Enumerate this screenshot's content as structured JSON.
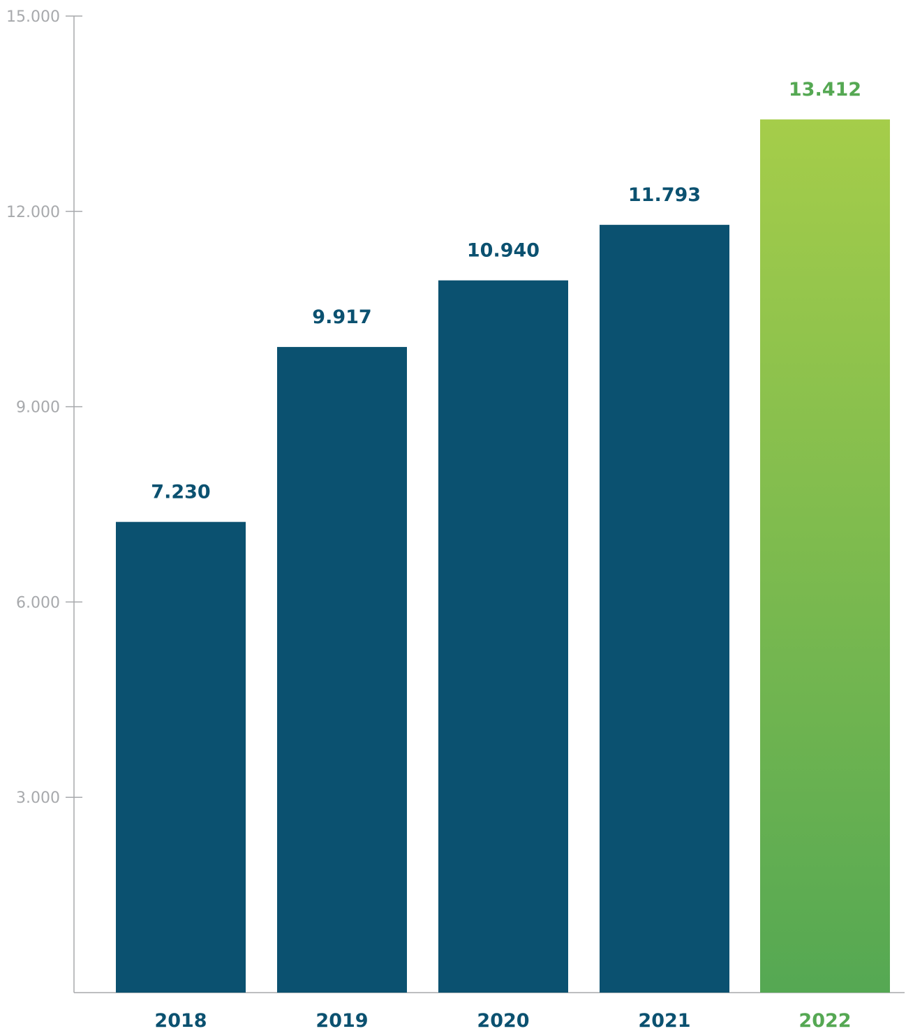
{
  "chart_data": {
    "type": "bar",
    "title": "",
    "xlabel": "",
    "ylabel": "",
    "categories": [
      "2018",
      "2019",
      "2020",
      "2021",
      "2022"
    ],
    "values": [
      7230,
      9917,
      10940,
      11793,
      13412
    ],
    "value_labels": [
      "7.230",
      "9.917",
      "10.940",
      "11.793",
      "13.412"
    ],
    "ylim": [
      0,
      15000
    ],
    "yticks": [
      3000,
      6000,
      9000,
      12000,
      15000
    ],
    "ytick_labels": [
      "3.000",
      "6.000",
      "9.000",
      "12.000",
      "15.000"
    ],
    "grid": false,
    "legend": "none",
    "highlight_index": 4
  },
  "colors": {
    "bar": "#0b5170",
    "highlight_top": "#a5cd4a",
    "highlight_bottom": "#55a853",
    "highlight_text": "#55a853",
    "axis": "#a7a9ac"
  }
}
